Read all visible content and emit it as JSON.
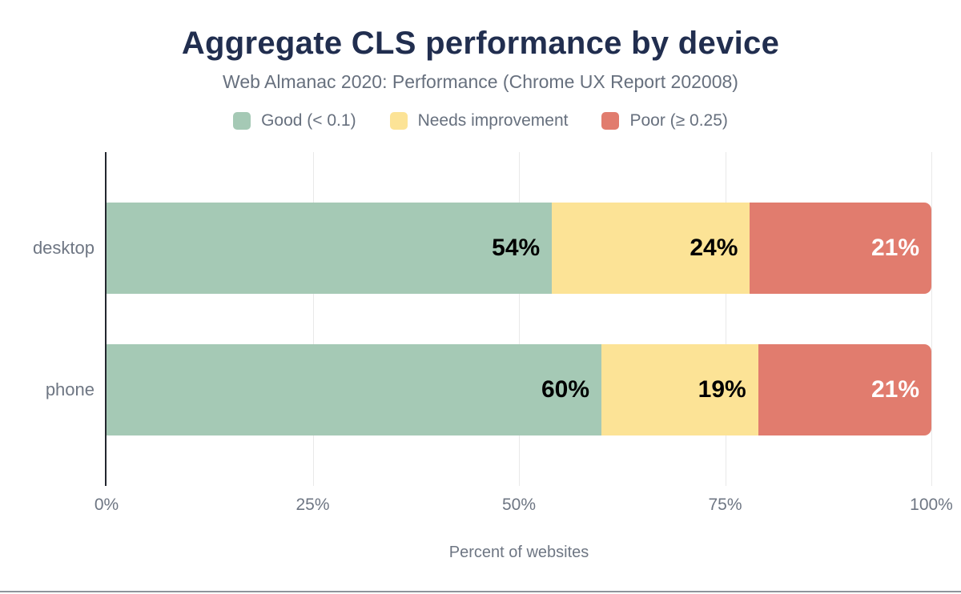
{
  "title": "Aggregate CLS performance by device",
  "subtitle": "Web Almanac 2020: Performance (Chrome UX Report 202008)",
  "chart_data": {
    "type": "bar",
    "orientation": "horizontal",
    "stacked": true,
    "title": "Aggregate CLS performance by device",
    "subtitle": "Web Almanac 2020: Performance (Chrome UX Report 202008)",
    "categories": [
      "desktop",
      "phone"
    ],
    "series": [
      {
        "name": "Good (< 0.1)",
        "color": "#a5c9b5",
        "label_color": "#000000",
        "values": [
          54,
          60
        ]
      },
      {
        "name": "Needs improvement",
        "color": "#fce396",
        "label_color": "#000000",
        "values": [
          24,
          19
        ]
      },
      {
        "name": "Poor (≥ 0.25)",
        "color": "#e17c6e",
        "label_color": "#ffffff",
        "values": [
          21,
          21
        ]
      }
    ],
    "value_suffix": "%",
    "xlabel": "Percent of websites",
    "x_ticks": [
      "0%",
      "25%",
      "50%",
      "75%",
      "100%"
    ],
    "xlim": [
      0,
      100
    ],
    "grid": true,
    "legend_position": "top"
  },
  "colors": {
    "title_text": "#212e4f",
    "muted_text": "#67707e",
    "axis_text": "#6e7683",
    "gridline": "#e9e9e9",
    "axis_line": "#23272f",
    "background": "#ffffff",
    "bottom_rule": "#8f949b"
  }
}
